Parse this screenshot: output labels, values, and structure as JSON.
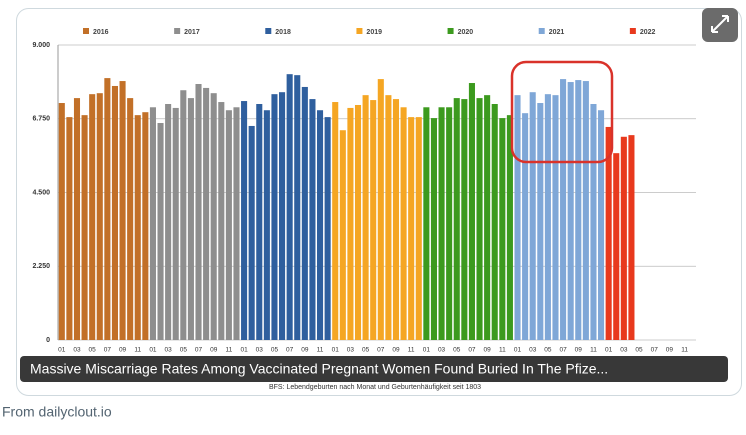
{
  "chart_data": {
    "type": "bar",
    "categories": [
      "01",
      null,
      "03",
      null,
      "05",
      null,
      "07",
      null,
      "09",
      null,
      "11",
      null
    ],
    "series": [
      {
        "name": "2016",
        "color": "#c27028",
        "values": [
          7230,
          6800,
          7380,
          6860,
          7500,
          7530,
          7990,
          7750,
          7900,
          7380,
          6860,
          6950
        ]
      },
      {
        "name": "2017",
        "color": "#8e8e8e",
        "values": [
          7100,
          6620,
          7200,
          7080,
          7620,
          7380,
          7810,
          7690,
          7530,
          7260,
          7010,
          7100
        ]
      },
      {
        "name": "2018",
        "color": "#2f5f9e",
        "values": [
          7290,
          6530,
          7200,
          7010,
          7500,
          7560,
          8110,
          8080,
          7720,
          7350,
          7010,
          6800
        ]
      },
      {
        "name": "2019",
        "color": "#f5a623",
        "values": [
          7260,
          6400,
          7080,
          7170,
          7470,
          7320,
          7960,
          7470,
          7350,
          7100,
          6800,
          6800
        ]
      },
      {
        "name": "2020",
        "color": "#3c9a1e",
        "values": [
          7100,
          6770,
          7100,
          7100,
          7380,
          7350,
          7840,
          7380,
          7470,
          7200,
          6770,
          6860
        ]
      },
      {
        "name": "2021",
        "color": "#7fa7d7",
        "values": [
          7470,
          6920,
          7560,
          7230,
          7500,
          7470,
          7960,
          7870,
          7930,
          7900,
          7200,
          7010
        ]
      },
      {
        "name": "2022",
        "color": "#e8391d",
        "values": [
          6500,
          5700,
          6200,
          6250,
          null,
          null,
          null,
          null,
          null,
          null,
          null,
          null
        ]
      }
    ],
    "ylim": [
      0,
      9000
    ],
    "yticks": [
      0,
      {
        "value": 2250,
        "label": "2.250"
      },
      {
        "value": 4500,
        "label": "4.500"
      },
      {
        "value": 6750,
        "label": "6.750"
      },
      {
        "value": 9000,
        "label": "9.000"
      }
    ],
    "grid": true,
    "source_note": "BFS: Lebendgeburten nach Monat und Geburtenhäufigkeit seit 1803"
  },
  "card": {
    "caption": "Massive Miscarriage Rates Among Vaccinated Pregnant Women Found Buried In The Pfize...",
    "source": "From dailyclout.io"
  }
}
